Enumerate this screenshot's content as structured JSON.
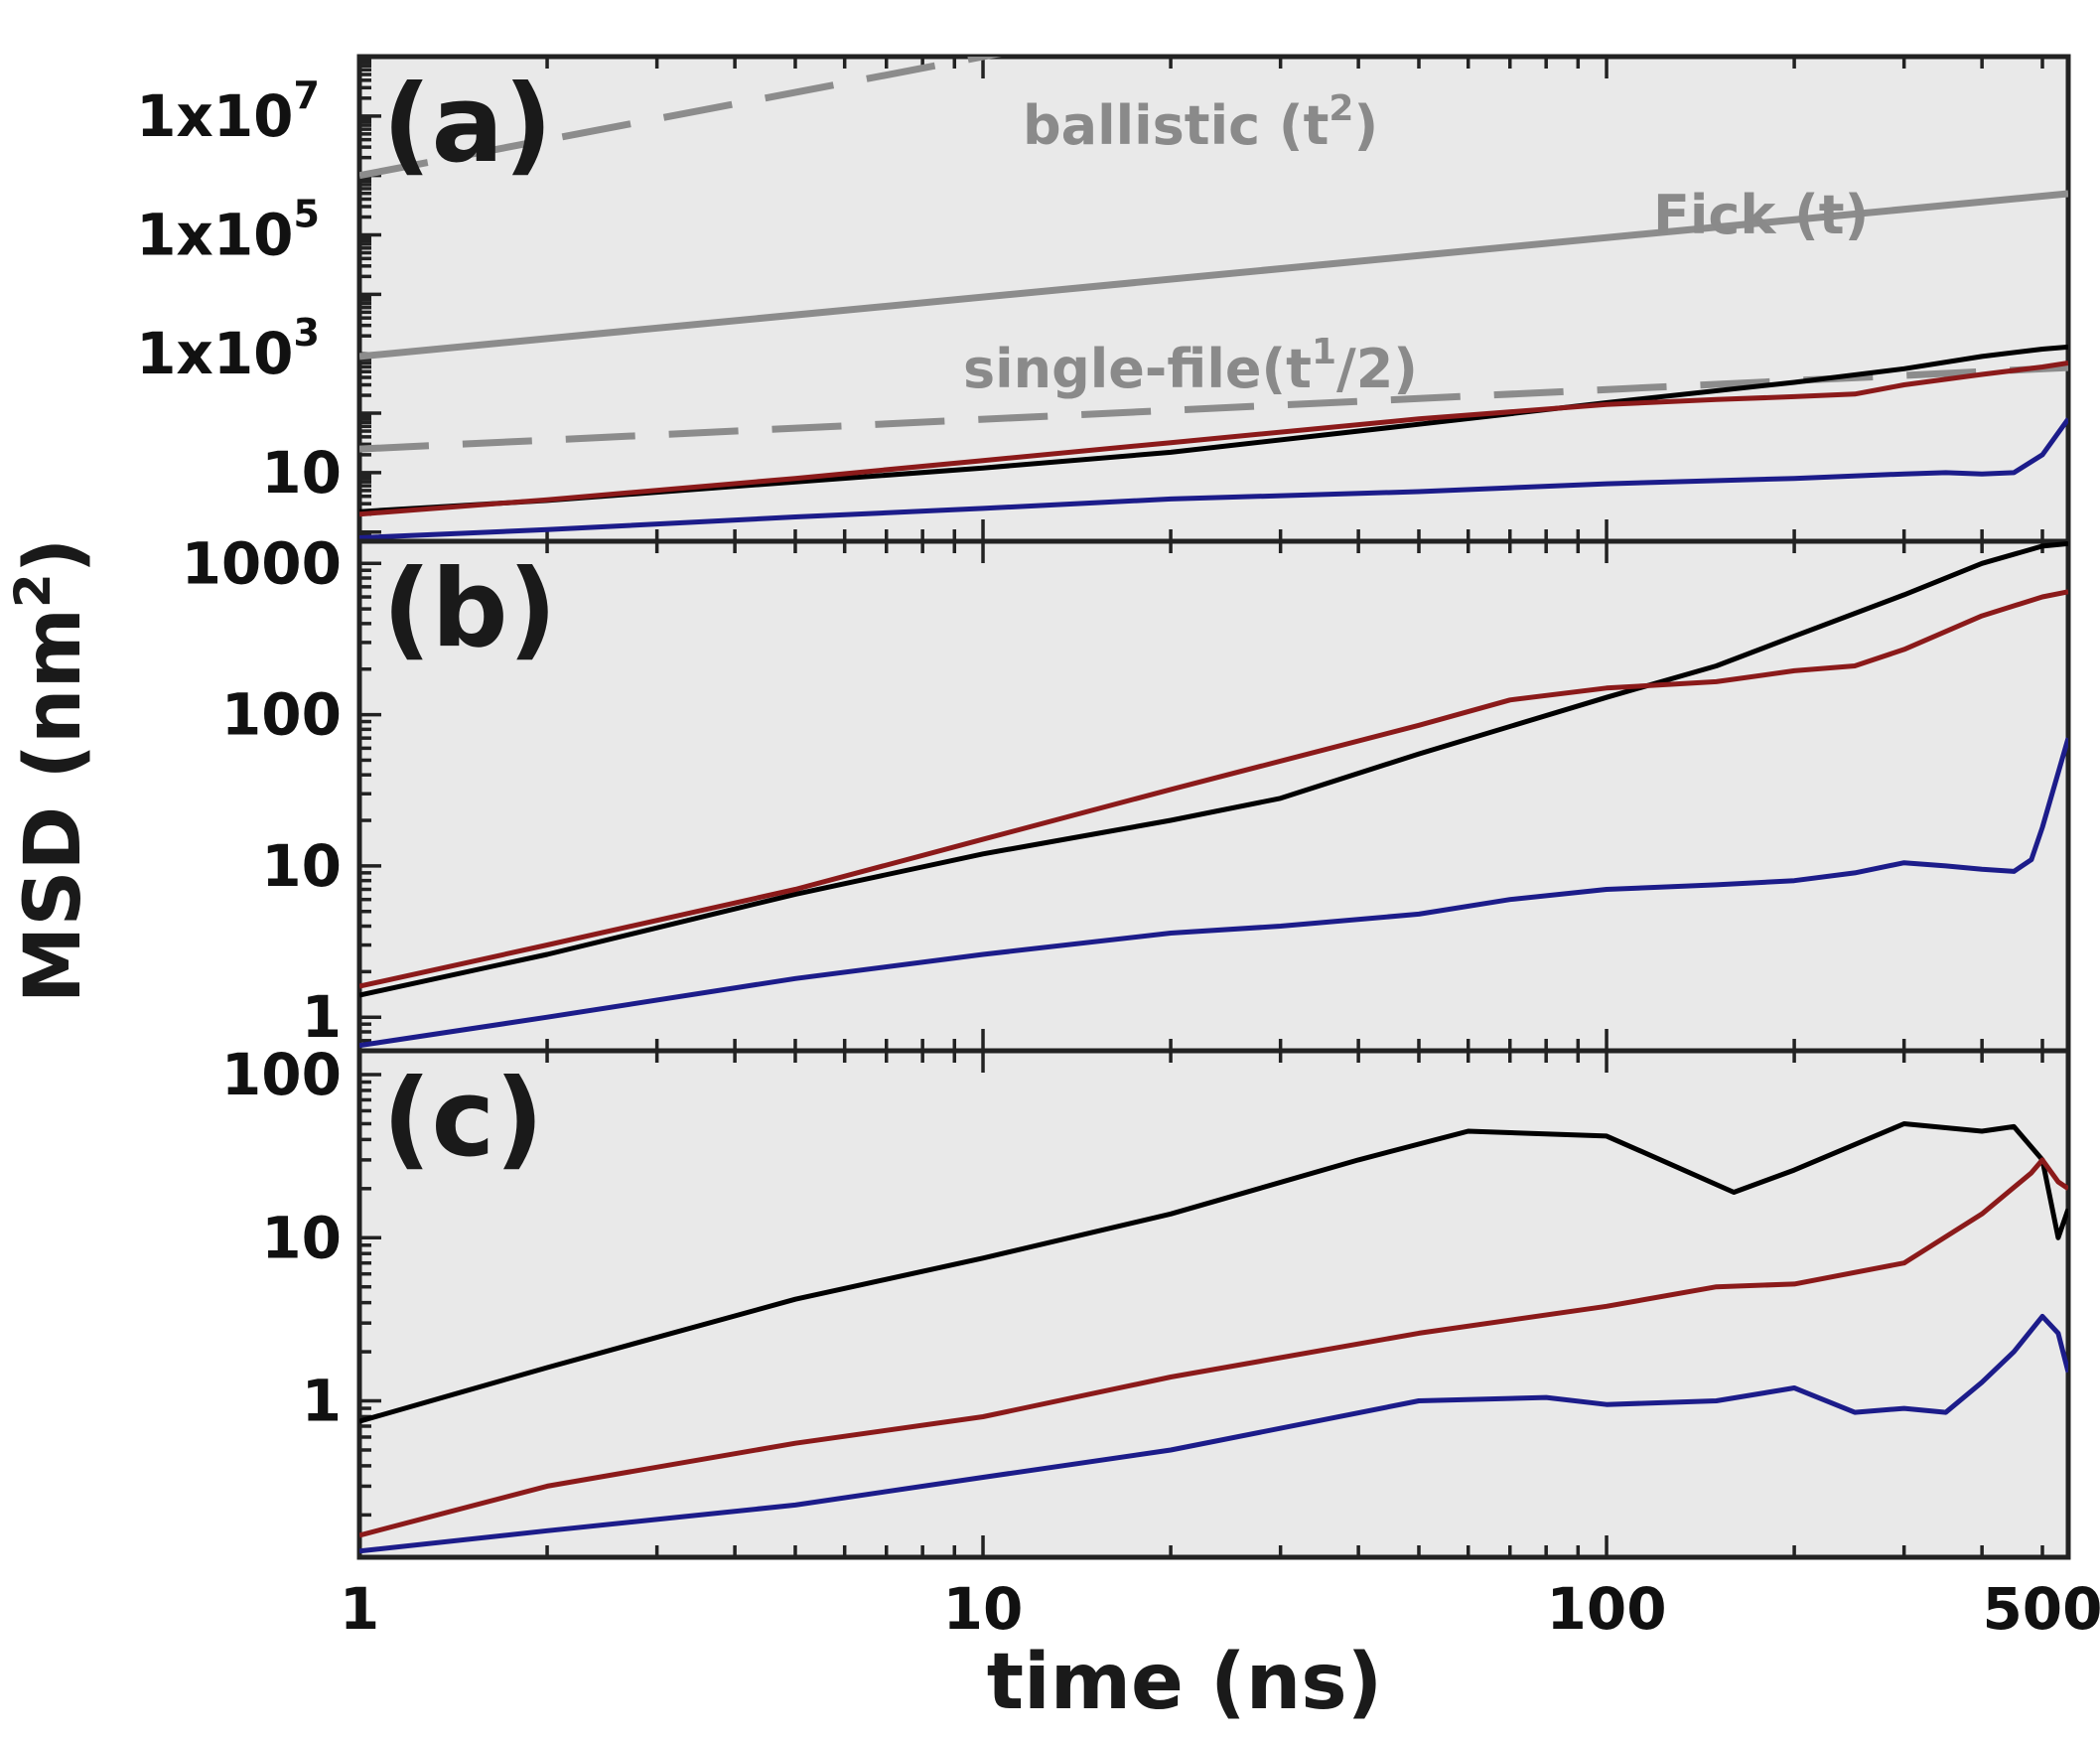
{
  "chart_data": [
    {
      "type": "line",
      "panel_label": "(a)",
      "x_scale": "log",
      "y_scale": "log",
      "xlim": [
        1,
        550
      ],
      "ylim": [
        0.7,
        100000000
      ],
      "y_tick_labels": [
        {
          "value": 10,
          "base": "10",
          "sup": ""
        },
        {
          "value": 1000,
          "base": "1x10",
          "sup": "3"
        },
        {
          "value": 100000,
          "base": "1x10",
          "sup": "5"
        },
        {
          "value": 10000000,
          "base": "1x10",
          "sup": "7"
        }
      ],
      "reference_lines": [
        {
          "name": "ballistic",
          "label_base": "ballistic (t",
          "label_sup": "2",
          "label_tail": ")",
          "dashed": true,
          "color": "#8c8c8c",
          "x": [
            1,
            550
          ],
          "y": [
            1000000,
            302500000000
          ]
        },
        {
          "name": "fick",
          "label_base": "Fick (t)",
          "label_sup": "",
          "label_tail": "",
          "dashed": false,
          "color": "#8c8c8c",
          "x": [
            1,
            550
          ],
          "y": [
            900,
            495000
          ]
        },
        {
          "name": "single-file",
          "label_base": "single-file(t",
          "label_sup": "1",
          "label_tail": "/2)",
          "dashed": true,
          "color": "#8c8c8c",
          "x": [
            1,
            550
          ],
          "y": [
            25,
            586
          ]
        }
      ],
      "series": [
        {
          "color": "#000000",
          "x": [
            1,
            2,
            5,
            10,
            20,
            50,
            100,
            200,
            300,
            400,
            500,
            550
          ],
          "y": [
            2.2,
            3.4,
            7,
            12,
            22,
            65,
            150,
            330,
            560,
            900,
            1200,
            1300
          ]
        },
        {
          "color": "#8b1a1a",
          "x": [
            1,
            2,
            5,
            10,
            20,
            50,
            100,
            150,
            200,
            250,
            300,
            400,
            500,
            550
          ],
          "y": [
            2,
            3.5,
            8,
            16,
            32,
            80,
            140,
            170,
            190,
            210,
            300,
            450,
            600,
            700
          ]
        },
        {
          "color": "#1c1c8a",
          "x": [
            1,
            2,
            5,
            10,
            20,
            50,
            100,
            200,
            300,
            350,
            400,
            450,
            500,
            550
          ],
          "y": [
            0.8,
            1.1,
            1.8,
            2.5,
            3.6,
            4.8,
            6.5,
            8,
            9.5,
            10,
            9.5,
            10,
            20,
            80
          ]
        }
      ]
    },
    {
      "type": "line",
      "panel_label": "(b)",
      "x_scale": "log",
      "y_scale": "log",
      "xlim": [
        1,
        550
      ],
      "ylim": [
        0.6,
        1400
      ],
      "y_tick_labels": [
        {
          "value": 1,
          "base": "1",
          "sup": ""
        },
        {
          "value": 10,
          "base": "10",
          "sup": ""
        },
        {
          "value": 100,
          "base": "100",
          "sup": ""
        },
        {
          "value": 1000,
          "base": "1000",
          "sup": ""
        }
      ],
      "series": [
        {
          "color": "#000000",
          "x": [
            1,
            2,
            5,
            10,
            20,
            30,
            50,
            100,
            150,
            200,
            300,
            400,
            500,
            550
          ],
          "y": [
            1.4,
            2.6,
            6.5,
            12,
            20,
            28,
            55,
            130,
            210,
            330,
            620,
            1000,
            1300,
            1350
          ]
        },
        {
          "color": "#8b1a1a",
          "x": [
            1,
            2,
            5,
            10,
            20,
            50,
            70,
            100,
            150,
            200,
            250,
            300,
            400,
            500,
            550
          ],
          "y": [
            1.6,
            3,
            7,
            15,
            32,
            85,
            125,
            150,
            165,
            195,
            210,
            270,
            450,
            600,
            650
          ]
        },
        {
          "color": "#1c1c8a",
          "x": [
            1,
            2,
            5,
            10,
            20,
            30,
            50,
            70,
            100,
            150,
            200,
            250,
            300,
            350,
            400,
            450,
            480,
            500,
            550
          ],
          "y": [
            0.65,
            1.0,
            1.8,
            2.6,
            3.6,
            4.0,
            4.8,
            6.0,
            7.0,
            7.5,
            8.0,
            9.0,
            10.5,
            10.0,
            9.5,
            9.2,
            11,
            18,
            70
          ]
        }
      ]
    },
    {
      "type": "line",
      "panel_label": "(c)",
      "x_scale": "log",
      "y_scale": "log",
      "xlim": [
        1,
        550
      ],
      "ylim": [
        0.11,
        140
      ],
      "y_tick_labels": [
        {
          "value": 1,
          "base": "1",
          "sup": ""
        },
        {
          "value": 10,
          "base": "10",
          "sup": ""
        },
        {
          "value": 100,
          "base": "100",
          "sup": ""
        }
      ],
      "series": [
        {
          "color": "#000000",
          "x": [
            1,
            2,
            5,
            10,
            20,
            40,
            60,
            100,
            130,
            160,
            200,
            300,
            400,
            450,
            500,
            530,
            550
          ],
          "y": [
            0.75,
            1.6,
            4.2,
            7.5,
            14,
            30,
            45,
            42,
            27,
            19,
            26,
            50,
            45,
            48,
            30,
            10,
            15
          ]
        },
        {
          "color": "#8b1a1a",
          "x": [
            1,
            2,
            5,
            10,
            20,
            50,
            100,
            150,
            200,
            300,
            400,
            480,
            500,
            530,
            550
          ],
          "y": [
            0.15,
            0.3,
            0.55,
            0.8,
            1.4,
            2.6,
            3.8,
            5,
            5.2,
            7,
            14,
            25,
            30,
            22,
            20
          ]
        },
        {
          "color": "#1c1c8a",
          "x": [
            1,
            2,
            5,
            10,
            20,
            50,
            80,
            100,
            150,
            200,
            250,
            300,
            350,
            400,
            450,
            500,
            530,
            550
          ],
          "y": [
            0.12,
            0.16,
            0.23,
            0.34,
            0.5,
            1.0,
            1.05,
            0.95,
            1.0,
            1.2,
            0.85,
            0.9,
            0.85,
            1.3,
            2.0,
            3.3,
            2.6,
            1.5
          ]
        }
      ]
    }
  ],
  "x_axis": {
    "label": "time (ns)",
    "ticks": [
      {
        "value": 1,
        "label": "1"
      },
      {
        "value": 10,
        "label": "10"
      },
      {
        "value": 100,
        "label": "100"
      },
      {
        "value": 500,
        "label": "500"
      }
    ]
  },
  "y_axis": {
    "label_base": "MSD (nm",
    "label_sup": "2",
    "label_tail": ")"
  }
}
